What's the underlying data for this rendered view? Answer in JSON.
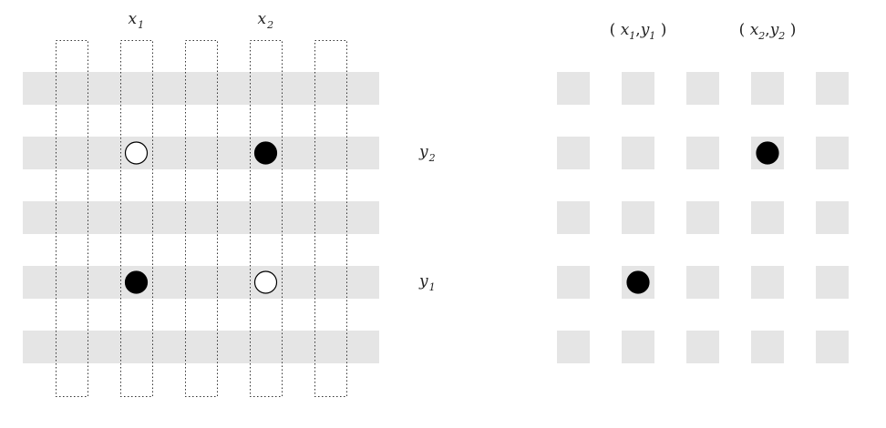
{
  "left_panel": {
    "rows": 5,
    "columns": 5,
    "row_band_color": "#e5e5e5",
    "column_outline_style": "dotted",
    "column_labels": [
      {
        "column": 2,
        "base": "x",
        "sub": "1"
      },
      {
        "column": 4,
        "base": "x",
        "sub": "2"
      }
    ],
    "row_labels": [
      {
        "row": 2,
        "base": "y",
        "sub": "2"
      },
      {
        "row": 4,
        "base": "y",
        "sub": "1"
      }
    ],
    "points": [
      {
        "column": 2,
        "row": 2,
        "fill": "white"
      },
      {
        "column": 4,
        "row": 2,
        "fill": "black"
      },
      {
        "column": 2,
        "row": 4,
        "fill": "black"
      },
      {
        "column": 4,
        "row": 4,
        "fill": "white"
      }
    ]
  },
  "right_panel": {
    "rows": 5,
    "columns": 5,
    "cell_color": "#e5e5e5",
    "column_labels": [
      {
        "column": 2,
        "open": "(",
        "x": "x",
        "xsub": "1",
        "comma": ",",
        "y": "y",
        "ysub": "1",
        "close": ")"
      },
      {
        "column": 4,
        "open": "(",
        "x": "x",
        "xsub": "2",
        "comma": ",",
        "y": "y",
        "ysub": "2",
        "close": ")"
      }
    ],
    "points": [
      {
        "column": 4,
        "row": 2,
        "fill": "black"
      },
      {
        "column": 2,
        "row": 4,
        "fill": "black"
      }
    ]
  }
}
